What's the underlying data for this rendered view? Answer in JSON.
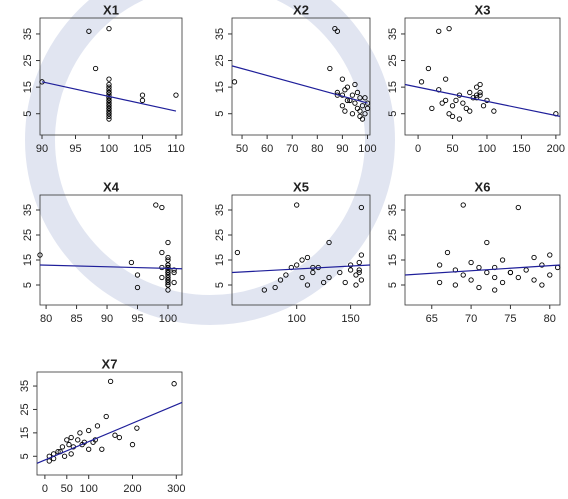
{
  "chart_data": [
    {
      "type": "scatter",
      "title": "X1",
      "color": "#000000",
      "x": [
        100,
        97,
        98,
        100,
        90,
        100,
        100,
        100,
        100,
        100,
        100,
        105,
        100,
        100,
        100,
        100,
        100,
        100,
        100,
        100,
        100,
        100,
        100,
        100,
        100,
        100,
        100,
        100,
        110,
        105
      ],
      "y": [
        37,
        36,
        22,
        18,
        17,
        16,
        15,
        14,
        13,
        13,
        12,
        12,
        11,
        11,
        10,
        10,
        9,
        9,
        8,
        8,
        7,
        7,
        6,
        6,
        5,
        5,
        4,
        3,
        12,
        10
      ],
      "line": {
        "x": [
          90,
          110
        ],
        "y": [
          17,
          6
        ],
        "color": "#1f1f9a"
      },
      "xlim": [
        89.7,
        110.9
      ],
      "ylim": [
        -3,
        41
      ],
      "xticks": [
        90,
        95,
        100,
        105,
        110
      ],
      "yticks": [
        5,
        15,
        25,
        35
      ]
    },
    {
      "type": "scatter",
      "title": "X2",
      "color": "#000000",
      "x": [
        87,
        88,
        85,
        90,
        47,
        95,
        92,
        91,
        88,
        96,
        94,
        90,
        97,
        99,
        92,
        93,
        100,
        95,
        90,
        98,
        96,
        100,
        91,
        97,
        94,
        99,
        97,
        98,
        88,
        93
      ],
      "y": [
        37,
        36,
        22,
        18,
        17,
        16,
        15,
        14,
        13,
        13,
        12,
        12,
        11,
        11,
        10,
        10,
        9,
        9,
        8,
        8,
        7,
        7,
        6,
        6,
        5,
        5,
        4,
        3,
        12,
        10
      ],
      "line": {
        "x": [
          46,
          100
        ],
        "y": [
          23,
          9
        ],
        "color": "#1f1f9a"
      },
      "xlim": [
        46,
        101
      ],
      "ylim": [
        -3,
        41
      ],
      "xticks": [
        50,
        60,
        70,
        80,
        90,
        100
      ],
      "yticks": [
        5,
        15,
        25,
        35
      ]
    },
    {
      "type": "scatter",
      "title": "X3",
      "color": "#000000",
      "x": [
        45,
        30,
        15,
        40,
        5,
        90,
        85,
        30,
        75,
        90,
        60,
        90,
        80,
        85,
        55,
        40,
        35,
        65,
        50,
        95,
        20,
        70,
        110,
        75,
        200,
        45,
        50,
        60,
        85,
        100
      ],
      "y": [
        37,
        36,
        22,
        18,
        17,
        16,
        15,
        14,
        13,
        13,
        12,
        12,
        11,
        11,
        10,
        10,
        9,
        9,
        8,
        8,
        7,
        7,
        6,
        6,
        5,
        5,
        4,
        3,
        12,
        10
      ],
      "line": {
        "x": [
          -19,
          206
        ],
        "y": [
          16,
          4
        ],
        "color": "#1f1f9a"
      },
      "xlim": [
        -19,
        206
      ],
      "ylim": [
        -3,
        41
      ],
      "xticks": [
        0,
        50,
        100,
        150,
        200
      ],
      "yticks": [
        5,
        15,
        25,
        35
      ]
    },
    {
      "type": "scatter",
      "title": "X4",
      "color": "#000000",
      "x": [
        98,
        99,
        100,
        99,
        79,
        100,
        100,
        94,
        100,
        100,
        99,
        100,
        100,
        101,
        100,
        100,
        95,
        100,
        100,
        99,
        100,
        100,
        100,
        101,
        100,
        100,
        95,
        100,
        100,
        101
      ],
      "y": [
        37,
        36,
        22,
        18,
        17,
        16,
        15,
        14,
        13,
        13,
        12,
        12,
        11,
        11,
        10,
        10,
        9,
        9,
        8,
        8,
        7,
        7,
        6,
        6,
        5,
        5,
        4,
        3,
        12,
        10
      ],
      "line": {
        "x": [
          79,
          102.3
        ],
        "y": [
          13,
          11.5
        ],
        "color": "#1f1f9a"
      },
      "xlim": [
        79,
        102.3
      ],
      "ylim": [
        -3,
        41
      ],
      "xticks": [
        80,
        85,
        90,
        95,
        100
      ],
      "yticks": [
        5,
        15,
        25,
        35
      ]
    },
    {
      "type": "scatter",
      "title": "X5",
      "color": "#000000",
      "x": [
        100,
        160,
        130,
        45,
        160,
        110,
        105,
        158,
        150,
        100,
        120,
        95,
        150,
        158,
        140,
        115,
        155,
        90,
        130,
        105,
        160,
        85,
        145,
        125,
        110,
        155,
        80,
        70,
        115,
        158
      ],
      "y": [
        37,
        36,
        22,
        18,
        17,
        16,
        15,
        14,
        13,
        13,
        12,
        12,
        11,
        11,
        10,
        10,
        9,
        9,
        8,
        8,
        7,
        7,
        6,
        6,
        5,
        5,
        4,
        3,
        12,
        10
      ],
      "line": {
        "x": [
          40,
          168
        ],
        "y": [
          10,
          13
        ],
        "color": "#1f1f9a"
      },
      "xlim": [
        40,
        168
      ],
      "ylim": [
        -3,
        41
      ],
      "xticks": [
        100,
        150
      ],
      "yticks": [
        5,
        15,
        25,
        35
      ]
    },
    {
      "type": "scatter",
      "title": "X6",
      "color": "#000000",
      "x": [
        69,
        76,
        72,
        67,
        80,
        78,
        74,
        70,
        66,
        79,
        73,
        71,
        77,
        68,
        75,
        72,
        80,
        69,
        76,
        73,
        78,
        70,
        66,
        74,
        79,
        68,
        71,
        73,
        81,
        75
      ],
      "y": [
        37,
        36,
        22,
        18,
        17,
        16,
        15,
        14,
        13,
        13,
        12,
        12,
        11,
        11,
        10,
        10,
        9,
        9,
        8,
        8,
        7,
        7,
        6,
        6,
        5,
        5,
        4,
        3,
        12,
        10
      ],
      "line": {
        "x": [
          61.6,
          81.3
        ],
        "y": [
          9,
          13
        ],
        "color": "#1f1f9a"
      },
      "xlim": [
        61.6,
        81.3
      ],
      "ylim": [
        -3,
        41
      ],
      "xticks": [
        65,
        70,
        75,
        80
      ],
      "yticks": [
        5,
        15,
        25,
        35
      ]
    },
    {
      "type": "scatter",
      "title": "X7",
      "color": "#000000",
      "x": [
        150,
        295,
        140,
        120,
        210,
        100,
        80,
        160,
        60,
        170,
        75,
        50,
        110,
        90,
        200,
        55,
        65,
        40,
        130,
        100,
        30,
        35,
        60,
        20,
        10,
        45,
        20,
        10,
        115,
        85
      ],
      "y": [
        37,
        36,
        22,
        18,
        17,
        16,
        15,
        14,
        13,
        13,
        12,
        12,
        11,
        11,
        10,
        10,
        9,
        9,
        8,
        8,
        7,
        7,
        6,
        6,
        5,
        5,
        4,
        3,
        12,
        10
      ],
      "line": {
        "x": [
          -18,
          313
        ],
        "y": [
          2,
          28
        ],
        "color": "#1f1f9a"
      },
      "xlim": [
        -18,
        313
      ],
      "ylim": [
        -3,
        41
      ],
      "xticks": [
        0,
        50,
        100,
        200,
        300
      ],
      "yticks": [
        5,
        15,
        25,
        35
      ]
    }
  ]
}
